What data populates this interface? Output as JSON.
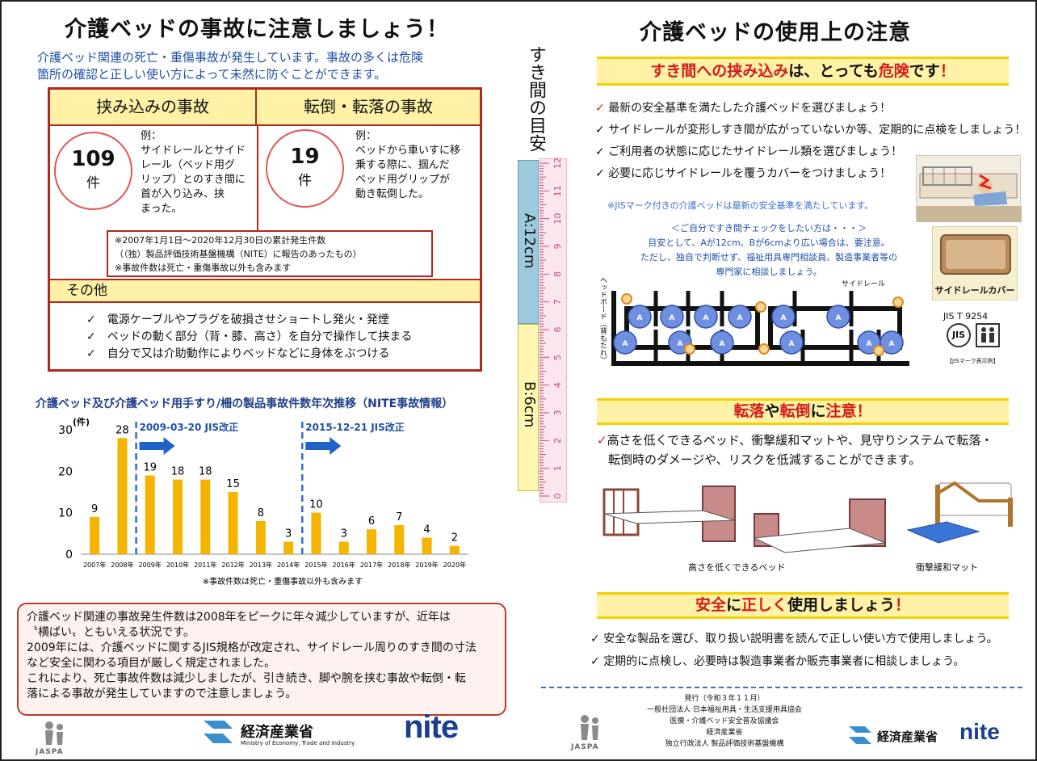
{
  "left": {
    "title": "介護ベッドの事故に注意しましょう！",
    "intro": [
      "介護ベッド関連の死亡・重傷事故が発生しています。事故の多くは危険",
      "箇所の確認と正しい使い方によって未然に防ぐことができます。"
    ],
    "pinch": {
      "header": "挟み込みの事故",
      "count": "109",
      "unit": "件",
      "example_label": "例：",
      "example": [
        "サイドレールとサイド",
        "レール（ベッド用グ",
        "リップ）とのすき間に",
        "首が入り込み、挟",
        "まった。"
      ]
    },
    "fall": {
      "header": "転倒・転落の事故",
      "count": "19",
      "unit": "件",
      "example_label": "例：",
      "example": [
        "ベッドから車いすに移",
        "乗する際に、掴んだ",
        "ベッド用グリップが",
        "動き転倒した。"
      ]
    },
    "note": [
      "※2007年1月1日～2020年12月30日の累計発生件数",
      "（（独）製品評価技術基盤機構（NITE）に報告のあったもの）",
      "※事故件数は死亡・重傷事故以外も含みます"
    ],
    "other_header": "その他",
    "other_items": [
      "電源ケーブルやプラグを破損させショートし発火・発煙",
      "ベッドの動く部分（背・膝、高さ）を自分で操作して挟まる",
      "自分で又は介助動作によりベッドなどに身体をぶつける"
    ],
    "summary": [
      "介護ベッド関連の事故発生件数は2008年をピークに年々減少していますが、近年は",
      "〝横ばい〟ともいえる状況です。",
      "2009年には、介護ベッドに関するJIS規格が改定され、サイドレール周りのすき間の寸法",
      "など安全に関わる項目が厳しく規定されました。",
      "これにより、死亡事故件数は減少しましたが、引き続き、脚や腕を挟む事故や転倒・転",
      "落による事故が発生していますので注意しましょう。"
    ]
  },
  "chart_data": {
    "type": "bar",
    "title": "介護ベッド及び介護ベッド用手すり/柵の製品事故件数年次推移（NITE事故情報）",
    "ylabel": "(件)",
    "categories": [
      "2007年",
      "2008年",
      "2009年",
      "2010年",
      "2011年",
      "2012年",
      "2013年",
      "2014年",
      "2015年",
      "2016年",
      "2017年",
      "2018年",
      "2019年",
      "2020年"
    ],
    "values": [
      9,
      28,
      19,
      18,
      18,
      15,
      8,
      3,
      10,
      3,
      6,
      7,
      4,
      2
    ],
    "ylim": [
      0,
      30
    ],
    "yticks": [
      0,
      10,
      20,
      30
    ],
    "annotations": [
      "2009-03-20 JIS改正",
      "2015-12-21 JIS改正"
    ],
    "footnote": "※事故件数は死亡・重傷事故以外も含みます",
    "bar_color": "#f5b400"
  },
  "ruler": {
    "label": "すき間の目安",
    "a_label": "A:12cm",
    "b_label": "B:6cm",
    "ticks": [
      "0",
      "1",
      "2",
      "3",
      "4",
      "5",
      "6",
      "7",
      "8",
      "9",
      "10",
      "11",
      "12"
    ]
  },
  "right": {
    "title": "介護ベッドの使用上の注意",
    "bar1": {
      "part1": "すき間への挟み込み",
      "part2": "は、とっても",
      "part3": "危険",
      "part4": "です",
      "mark": "！"
    },
    "checks": [
      "最新の安全基準を満たした介護ベッドを選びましょう！",
      "サイドレールが変形しすき間が広がっていないか等、定期的に点検をしましょう！",
      "ご利用者の状態に応じたサイドレール類を選びましょう！",
      "必要に応じサイドレールを覆うカバーをつけましょう！"
    ],
    "jis_note": "※JISマーク付きの介護ベッドは最新の安全基準を満たしています。",
    "self_check": [
      "＜ご自分ですき間チェックをしたい方は・・・＞",
      "目安として、Aが12cm、Bが6cmより広い場合は、要注意。",
      "ただし、独自で判断せず、福祉用具専門相談員、製造事業者等の",
      "専門家に相談しましょう。"
    ],
    "headboard": "ヘッドボード（背もたれ）",
    "siderail": "サイドレール",
    "cover_label": "サイドレールカバー",
    "jis_code": "JIS T 9254",
    "jis_mark": "JIS",
    "jis_example": "【JISマーク表示例】",
    "bar2": {
      "part1": "転落",
      "part2": "や",
      "part3": "転倒",
      "part4": "に",
      "part5": "注意",
      "mark": "！"
    },
    "fall_text1": "高さを低くできるベッド、衝撃緩和マットや、見守りシステムで転落・",
    "fall_text2": "転倒時のダメージや、リスクを低減することができます。",
    "low_bed": "高さを低くできるベッド",
    "mat": "衝撃緩和マット",
    "bar3": {
      "part1": "安全",
      "part2": "に",
      "part3": "正しく",
      "part4": "使用しましょう",
      "mark": "！"
    },
    "safe_items": [
      "安全な製品を選び、取り扱い説明書を読んで正しい使い方で使用しましょう。",
      "定期的に点検し、必要時は製造事業者か販売事業者に相談しましょう。"
    ],
    "issuer": [
      "発行（令和３年１１月）",
      "一般社団法人 日本福祉用具・生活支援用具協会",
      "医療・介護ベッド安全普及協議会",
      "経済産業省",
      "独立行政法人 製品評価技術基盤機構"
    ]
  },
  "logos": {
    "jaspa": "JASPA",
    "meti": "経済産業省",
    "meti_en": "Ministry of Economy, Trade and Industry",
    "nite": "nite"
  },
  "colors": {
    "red": "#d21d1d",
    "blue": "#1f4fa8",
    "yellow": "#fff1a6",
    "bar": "#f5b400"
  }
}
